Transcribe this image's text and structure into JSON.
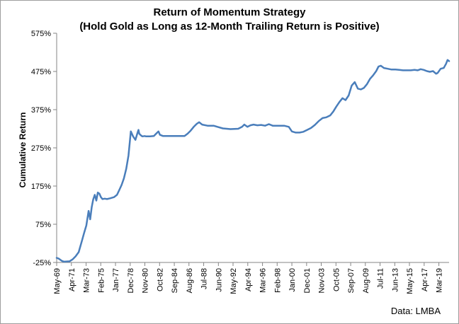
{
  "chart_data": {
    "type": "line",
    "title_line1": "Return of Momentum Strategy",
    "title_line2": "(Hold Gold as Long as 12-Month Trailing Return is Positive)",
    "xlabel": "",
    "ylabel": "Cumulative Return",
    "y_ticks": [
      "-25%",
      "75%",
      "175%",
      "275%",
      "375%",
      "475%",
      "575%"
    ],
    "y_tick_values": [
      -25,
      75,
      175,
      275,
      375,
      475,
      575
    ],
    "ylim": [
      -25,
      575
    ],
    "x_ticks": [
      "May-69",
      "Apr-71",
      "Mar-73",
      "Feb-75",
      "Jan-77",
      "Dec-78",
      "Nov-80",
      "Oct-82",
      "Sep-84",
      "Aug-86",
      "Jul-88",
      "Jun-90",
      "May-92",
      "Apr-94",
      "Mar-96",
      "Feb-98",
      "Jan-00",
      "Dec-01",
      "Nov-03",
      "Oct-05",
      "Sep-07",
      "Aug-09",
      "Jul-11",
      "Jun-13",
      "May-15",
      "Apr-17",
      "Mar-19"
    ],
    "x_tick_values": [
      1969.33,
      1971.25,
      1973.17,
      1975.08,
      1977.0,
      1978.92,
      1980.83,
      1982.75,
      1984.67,
      1986.58,
      1988.5,
      1990.42,
      1992.33,
      1994.25,
      1996.17,
      1998.08,
      2000.0,
      2001.92,
      2003.83,
      2005.75,
      2007.67,
      2009.58,
      2011.5,
      2013.42,
      2015.33,
      2017.25,
      2019.17
    ],
    "xlim": [
      1969.33,
      2020.5
    ],
    "grid": false,
    "legend": "none",
    "series": [
      {
        "color": "#4a7ebb",
        "x": [
          1969.33,
          1969.6,
          1970.0,
          1970.3,
          1971.0,
          1971.4,
          1971.8,
          1972.2,
          1972.6,
          1972.9,
          1973.2,
          1973.5,
          1973.7,
          1973.9,
          1974.1,
          1974.3,
          1974.5,
          1974.7,
          1974.9,
          1975.1,
          1975.3,
          1975.6,
          1975.9,
          1976.3,
          1976.8,
          1977.2,
          1977.5,
          1977.8,
          1978.1,
          1978.4,
          1978.7,
          1979.0,
          1979.3,
          1979.6,
          1979.9,
          1980.0,
          1980.1,
          1980.3,
          1980.5,
          1980.8,
          1981.0,
          1981.5,
          1982.0,
          1982.4,
          1982.6,
          1982.8,
          1983.2,
          1984.0,
          1985.0,
          1986.0,
          1986.4,
          1986.8,
          1987.2,
          1987.6,
          1987.9,
          1988.3,
          1989.0,
          1989.8,
          1990.3,
          1991.0,
          1992.0,
          1993.0,
          1993.5,
          1993.8,
          1994.2,
          1994.6,
          1995.0,
          1995.5,
          1996.0,
          1996.5,
          1997.0,
          1997.5,
          1998.0,
          1999.0,
          1999.6,
          2000.0,
          2000.5,
          2001.0,
          2001.5,
          2002.0,
          2002.5,
          2003.0,
          2003.5,
          2004.0,
          2004.5,
          2005.0,
          2005.4,
          2005.8,
          2006.2,
          2006.6,
          2007.0,
          2007.4,
          2007.8,
          2008.2,
          2008.6,
          2009.0,
          2009.4,
          2009.8,
          2010.2,
          2010.6,
          2011.0,
          2011.3,
          2011.6,
          2012.0,
          2012.5,
          2013.0,
          2013.5,
          2014.0,
          2014.5,
          2015.0,
          2015.5,
          2016.0,
          2016.4,
          2016.8,
          2017.2,
          2017.6,
          2018.0,
          2018.4,
          2018.8,
          2019.0,
          2019.4,
          2019.8,
          2020.1,
          2020.3,
          2020.5
        ],
        "y": [
          -13,
          -15,
          -21,
          -23,
          -22,
          -17,
          -9,
          2,
          30,
          52,
          72,
          110,
          88,
          120,
          140,
          152,
          137,
          158,
          155,
          146,
          141,
          142,
          141,
          143,
          146,
          152,
          165,
          178,
          195,
          220,
          255,
          318,
          305,
          296,
          316,
          322,
          312,
          308,
          305,
          306,
          305,
          305,
          306,
          314,
          318,
          309,
          306,
          306,
          306,
          306,
          312,
          320,
          330,
          338,
          342,
          336,
          333,
          333,
          330,
          326,
          324,
          325,
          330,
          336,
          330,
          334,
          336,
          334,
          335,
          333,
          337,
          333,
          333,
          333,
          330,
          318,
          315,
          315,
          317,
          322,
          327,
          335,
          345,
          353,
          355,
          360,
          370,
          383,
          395,
          405,
          400,
          412,
          438,
          447,
          430,
          428,
          432,
          442,
          456,
          465,
          476,
          488,
          490,
          484,
          482,
          480,
          480,
          479,
          478,
          478,
          478,
          479,
          478,
          481,
          479,
          476,
          474,
          476,
          469,
          471,
          482,
          484,
          495,
          505,
          502
        ]
      }
    ]
  },
  "source": "Data: LMBA"
}
